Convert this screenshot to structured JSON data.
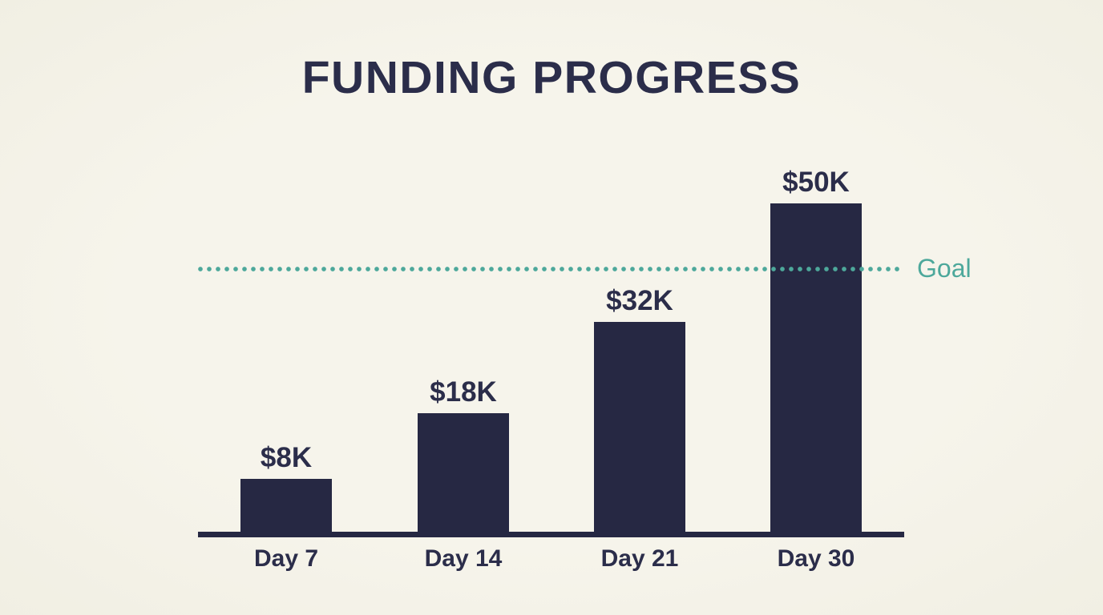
{
  "chart_data": {
    "type": "bar",
    "title": "FUNDING PROGRESS",
    "categories": [
      "Day 7",
      "Day 14",
      "Day 21",
      "Day 30"
    ],
    "values": [
      8,
      18,
      32,
      50
    ],
    "value_labels": [
      "$8K",
      "$18K",
      "$32K",
      "$50K"
    ],
    "goal": {
      "label": "Goal",
      "value": 40
    },
    "ylim": [
      0,
      50
    ],
    "xlabel": "",
    "ylabel": "",
    "grid": false,
    "legend": "none",
    "colors": {
      "background": "#f6f4eb",
      "background_edge": "#f1efe3",
      "bar": "#262843",
      "text": "#2b2d4a",
      "goal": "#4da89b"
    }
  }
}
